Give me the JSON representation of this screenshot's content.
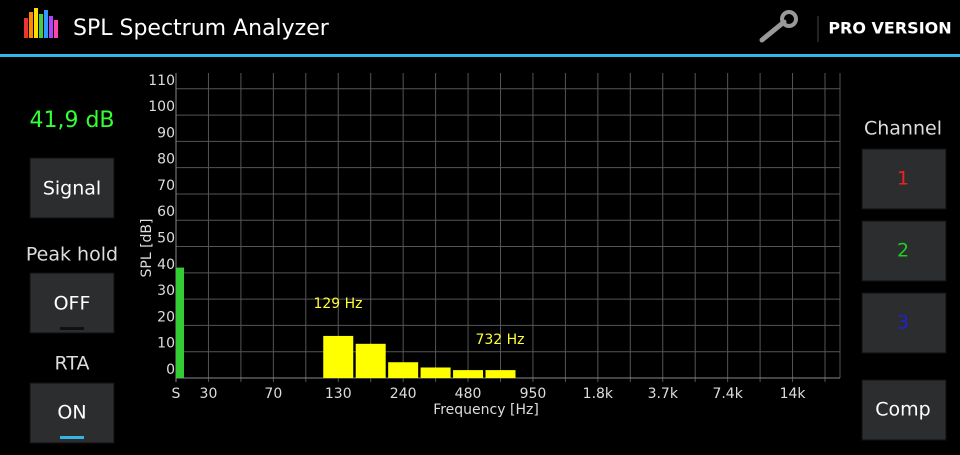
{
  "header": {
    "title": "SPL Spectrum Analyzer",
    "pro": "PRO VERSION"
  },
  "left_panel": {
    "level": "41,9 dB",
    "signal_button": "Signal",
    "peak_hold_label": "Peak hold",
    "peak_hold_button": "OFF",
    "rta_label": "RTA",
    "rta_button": "ON"
  },
  "right_panel": {
    "channel_label": "Channel",
    "channels": [
      "1",
      "2",
      "3"
    ],
    "comp_button": "Comp"
  },
  "chart_data": {
    "type": "bar",
    "x_label": "Frequency [Hz]",
    "y_label": "SPL [dB]",
    "categories": [
      "S",
      "30",
      null,
      "70",
      null,
      "130",
      null,
      "240",
      null,
      "480",
      null,
      "950",
      null,
      "1.8k",
      null,
      "3.7k",
      null,
      "7.4k",
      null,
      "14k",
      null
    ],
    "values": [
      null,
      null,
      null,
      null,
      null,
      16,
      13,
      6,
      4,
      3,
      3,
      null,
      null,
      null,
      null,
      null,
      null,
      null,
      null,
      null,
      null
    ],
    "color": "#ffff00",
    "level_bar_value": 42,
    "level_bar_color": "#33cc33",
    "annotations": [
      "129 Hz",
      "732 Hz"
    ],
    "ylim": [
      0,
      116
    ],
    "yticks": [
      0,
      10,
      20,
      30,
      40,
      50,
      60,
      70,
      80,
      90,
      100,
      110
    ],
    "grid": true
  }
}
